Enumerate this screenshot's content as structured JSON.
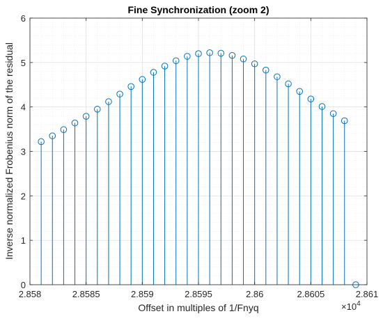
{
  "chart_data": {
    "type": "stem",
    "title": "Fine Synchronization (zoom 2)",
    "xlabel": "Offset in multiples of 1/Fnyq",
    "ylabel": "Inverse normalized Frobenius norm of the residual",
    "xlim": [
      28580,
      28610
    ],
    "ylim": [
      0,
      6
    ],
    "x_tick_values": [
      28580,
      28585,
      28590,
      28595,
      28600,
      28605,
      28610
    ],
    "x_tick_labels": [
      "2.858",
      "2.8585",
      "2.859",
      "2.8595",
      "2.86",
      "2.8605",
      "2.861"
    ],
    "x_exponent": "×10",
    "x_exponent_power": "4",
    "y_tick_values": [
      0,
      1,
      2,
      3,
      4,
      5,
      6
    ],
    "y_tick_labels": [
      "0",
      "1",
      "2",
      "3",
      "4",
      "5",
      "6"
    ],
    "grid": true,
    "color": "#0072BD",
    "x": [
      28581,
      28582,
      28583,
      28584,
      28585,
      28586,
      28587,
      28588,
      28589,
      28590,
      28591,
      28592,
      28593,
      28594,
      28595,
      28596,
      28597,
      28598,
      28599,
      28600,
      28601,
      28602,
      28603,
      28604,
      28605,
      28606,
      28607,
      28608,
      28609
    ],
    "y": [
      3.22,
      3.35,
      3.49,
      3.64,
      3.79,
      3.95,
      4.12,
      4.29,
      4.46,
      4.62,
      4.78,
      4.92,
      5.04,
      5.14,
      5.2,
      5.22,
      5.21,
      5.16,
      5.08,
      4.97,
      4.83,
      4.68,
      4.52,
      4.35,
      4.18,
      4.01,
      3.85,
      3.69,
      0.0
    ]
  }
}
